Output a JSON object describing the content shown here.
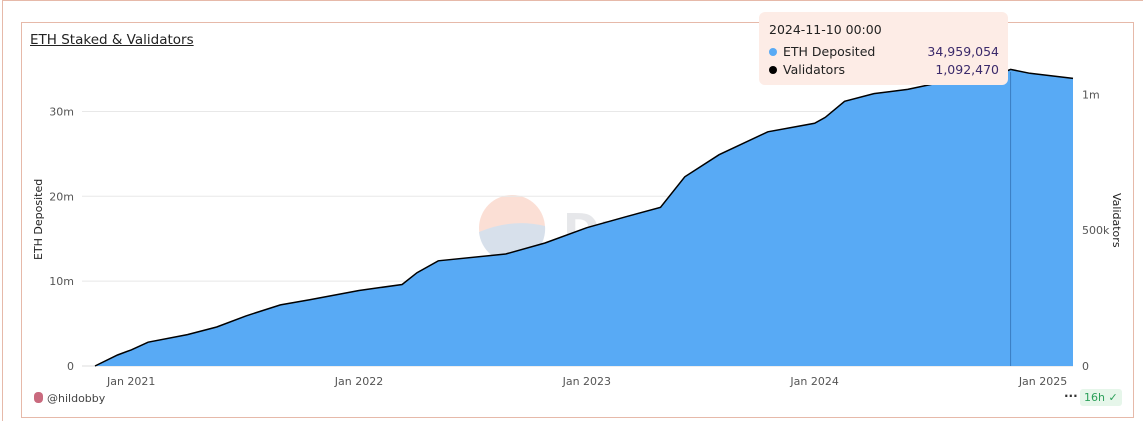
{
  "chart_data": {
    "type": "area",
    "title": "ETH Staked & Validators",
    "ylabel_left": "ETH Deposited",
    "ylabel_right": "Validators",
    "ylim_left": [
      0,
      33000000
    ],
    "ylim_right": [
      0,
      1031250
    ],
    "yticks_left": [
      {
        "v": 0,
        "label": "0"
      },
      {
        "v": 10000000,
        "label": "10m"
      },
      {
        "v": 20000000,
        "label": "20m"
      },
      {
        "v": 30000000,
        "label": "30m"
      }
    ],
    "yticks_right": [
      {
        "v": 0,
        "label": "0"
      },
      {
        "v": 500000,
        "label": "500k"
      },
      {
        "v": 1000000,
        "label": "1m"
      }
    ],
    "xticks": [
      {
        "d": "2021-01-01",
        "label": "Jan 2021"
      },
      {
        "d": "2022-01-01",
        "label": "Jan 2022"
      },
      {
        "d": "2023-01-01",
        "label": "Jan 2023"
      },
      {
        "d": "2024-01-01",
        "label": "Jan 2024"
      },
      {
        "d": "2025-01-01",
        "label": "Jan 2025"
      }
    ],
    "xrange": [
      "2020-11-04",
      "2025-02-18"
    ],
    "grid": true,
    "series": [
      {
        "name": "ETH Deposited",
        "type": "area",
        "axis": "left",
        "color": "#58aaf5",
        "x": [
          "2020-11-04",
          "2020-12-10",
          "2021-01-01",
          "2021-01-28",
          "2021-04-01",
          "2021-05-18",
          "2021-07-04",
          "2021-08-28",
          "2021-10-14",
          "2022-01-01",
          "2022-03-11",
          "2022-04-04",
          "2022-05-08",
          "2022-08-24",
          "2022-10-26",
          "2023-01-01",
          "2023-03-05",
          "2023-04-29",
          "2023-06-07",
          "2023-08-01",
          "2023-10-18",
          "2024-01-01",
          "2024-01-18",
          "2024-02-18",
          "2024-04-05",
          "2024-05-29",
          "2024-07-07",
          "2024-10-09",
          "2024-11-10",
          "2024-12-11",
          "2025-02-18"
        ],
        "y": [
          0,
          1300000,
          1900000,
          2800000,
          3700000,
          4600000,
          5900000,
          7200000,
          7800000,
          8900000,
          9600000,
          11000000,
          12400000,
          13200000,
          14500000,
          16300000,
          17600000,
          18700000,
          22300000,
          24900000,
          27600000,
          28600000,
          29300000,
          31200000,
          32100000,
          32600000,
          33200000,
          34000000,
          34959054,
          34500000,
          33900000
        ]
      },
      {
        "name": "Validators",
        "type": "line",
        "axis": "right",
        "color": "#000000",
        "y": [
          0,
          40600,
          59400,
          87500,
          115600,
          143800,
          184400,
          225000,
          243800,
          278100,
          300000,
          343800,
          387500,
          412500,
          453100,
          509400,
          550000,
          584400,
          696900,
          778100,
          862500,
          893800,
          915600,
          975000,
          1003100,
          1018800,
          1037500,
          1062500,
          1092470,
          1078100,
          1059400
        ]
      }
    ],
    "tooltip": {
      "date": "2024-11-10 00:00",
      "rows": [
        {
          "label": "ETH Deposited",
          "value": "34,959,054",
          "color": "#58aaf5"
        },
        {
          "label": "Validators",
          "value": "1,092,470",
          "color": "#000000"
        }
      ]
    },
    "watermark": "Dune"
  },
  "footer": {
    "author": "@hildobby",
    "more": "···",
    "freshness": "16h"
  }
}
